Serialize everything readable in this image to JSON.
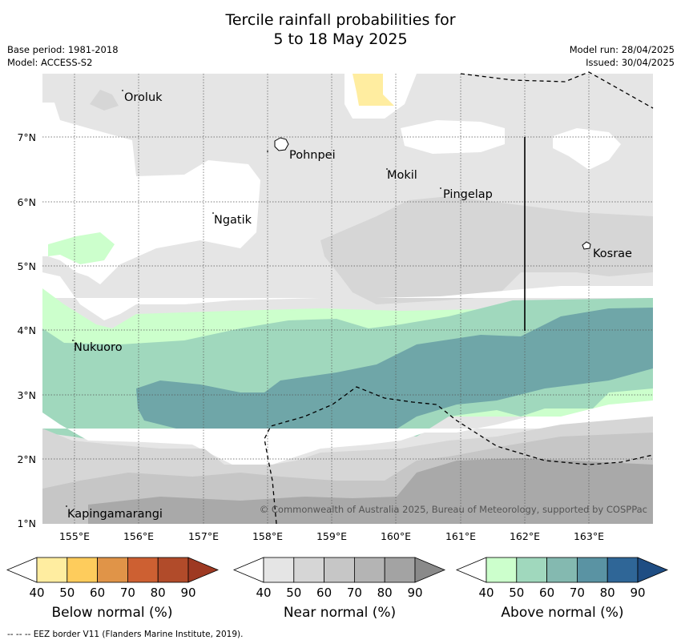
{
  "header": {
    "title_line1": "Tercile rainfall probabilities for",
    "title_line2": "5 to 18 May 2025",
    "base_period": "Base period: 1981-2018",
    "model": "Model: ACCESS-S2",
    "model_run": "Model run: 28/04/2025",
    "issued": "Issued: 30/04/2025"
  },
  "map": {
    "lat_ticks": [
      "7°N",
      "6°N",
      "5°N",
      "4°N",
      "3°N",
      "2°N",
      "1°N"
    ],
    "lon_ticks": [
      "155°E",
      "156°E",
      "157°E",
      "158°E",
      "159°E",
      "160°E",
      "161°E",
      "162°E",
      "163°E"
    ],
    "places": [
      "Oroluk",
      "Pohnpei",
      "Mokil",
      "Pingelap",
      "Ngatik",
      "Kosrae",
      "Nukuoro",
      "Kapingamarangi"
    ],
    "credit": "© Commonwealth of Australia 2025, Bureau of Meteorology, supported by COSPPac"
  },
  "colorbars": [
    {
      "caption": "Below normal (%)",
      "labels": [
        "40",
        "50",
        "60",
        "70",
        "80",
        "90"
      ],
      "colors": [
        "#ffffff",
        "#ffeda0",
        "#fecc5c",
        "#e09448",
        "#cd6032",
        "#b14b2a",
        "#9e3922"
      ]
    },
    {
      "caption": "Near normal (%)",
      "labels": [
        "40",
        "50",
        "60",
        "70",
        "80",
        "90"
      ],
      "colors": [
        "#ffffff",
        "#e5e5e5",
        "#d6d6d6",
        "#c6c6c6",
        "#b4b4b4",
        "#a3a3a3",
        "#8a8a8a"
      ]
    },
    {
      "caption": "Above normal (%)",
      "labels": [
        "40",
        "50",
        "60",
        "70",
        "80",
        "90"
      ],
      "colors": [
        "#ffffff",
        "#ccffcc",
        "#a0d8bd",
        "#84b9b0",
        "#5a93a3",
        "#2f6697",
        "#1f4d83"
      ]
    }
  ],
  "footer": {
    "eez_note": "--  --  -- EEZ border V11 (Flanders Marine Institute, 2019)."
  }
}
